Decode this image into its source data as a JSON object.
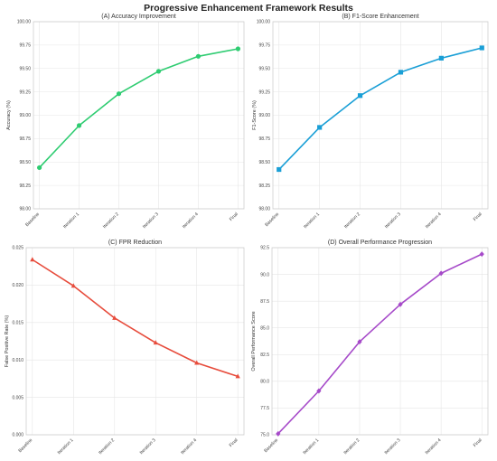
{
  "figure_title": "Progressive Enhancement Framework Results",
  "chart_data": [
    {
      "type": "line",
      "title": "(A) Accuracy Improvement",
      "xlabel": "",
      "ylabel": "Accuracy (%)",
      "categories": [
        "Baseline",
        "Iteration 1",
        "Iteration 2",
        "Iteration 3",
        "Iteration 4",
        "Final"
      ],
      "series": [
        {
          "values": [
            98.44,
            98.89,
            99.23,
            99.47,
            99.63,
            99.71
          ],
          "color": "#2ecc71",
          "marker": "circle"
        }
      ],
      "ylim": [
        98.0,
        100.0
      ],
      "yticks": [
        "98.00",
        "98.25",
        "98.50",
        "98.75",
        "99.00",
        "99.25",
        "99.50",
        "99.75",
        "100.00"
      ],
      "grid": true,
      "legend": "none"
    },
    {
      "type": "line",
      "title": "(B) F1-Score Enhancement",
      "xlabel": "",
      "ylabel": "F1-Score (%)",
      "categories": [
        "Baseline",
        "Iteration 1",
        "Iteration 2",
        "Iteration 3",
        "Iteration 4",
        "Final"
      ],
      "series": [
        {
          "values": [
            98.42,
            98.87,
            99.21,
            99.46,
            99.61,
            99.72
          ],
          "color": "#1a9fd6",
          "marker": "square"
        }
      ],
      "ylim": [
        98.0,
        100.0
      ],
      "yticks": [
        "98.00",
        "98.25",
        "98.50",
        "98.75",
        "99.00",
        "99.25",
        "99.50",
        "99.75",
        "100.00"
      ],
      "grid": true,
      "legend": "none"
    },
    {
      "type": "line",
      "title": "(C) FPR Reduction",
      "xlabel": "",
      "ylabel": "False Positive Rate (%)",
      "categories": [
        "Baseline",
        "Iteration 1",
        "Iteration 2",
        "Iteration 3",
        "Iteration 4",
        "Final"
      ],
      "series": [
        {
          "values": [
            0.0234,
            0.0199,
            0.0156,
            0.0123,
            0.0096,
            0.0078
          ],
          "color": "#e74c3c",
          "marker": "triangle"
        }
      ],
      "ylim": [
        0.0,
        0.025
      ],
      "yticks": [
        "0.000",
        "0.005",
        "0.010",
        "0.015",
        "0.020",
        "0.025"
      ],
      "grid": true,
      "legend": "none"
    },
    {
      "type": "line",
      "title": "(D) Overall Performance Progression",
      "xlabel": "",
      "ylabel": "Overall Performance Score",
      "categories": [
        "Baseline",
        "Iteration 1",
        "Iteration 2",
        "Iteration 3",
        "Iteration 4",
        "Final"
      ],
      "series": [
        {
          "values": [
            75.1,
            79.1,
            83.7,
            87.2,
            90.1,
            91.9
          ],
          "color": "#a64ac9",
          "marker": "diamond"
        }
      ],
      "ylim": [
        75.0,
        92.5
      ],
      "yticks": [
        "75.0",
        "77.5",
        "80.0",
        "82.5",
        "85.0",
        "87.5",
        "90.0",
        "92.5"
      ],
      "grid": true,
      "legend": "none"
    }
  ]
}
